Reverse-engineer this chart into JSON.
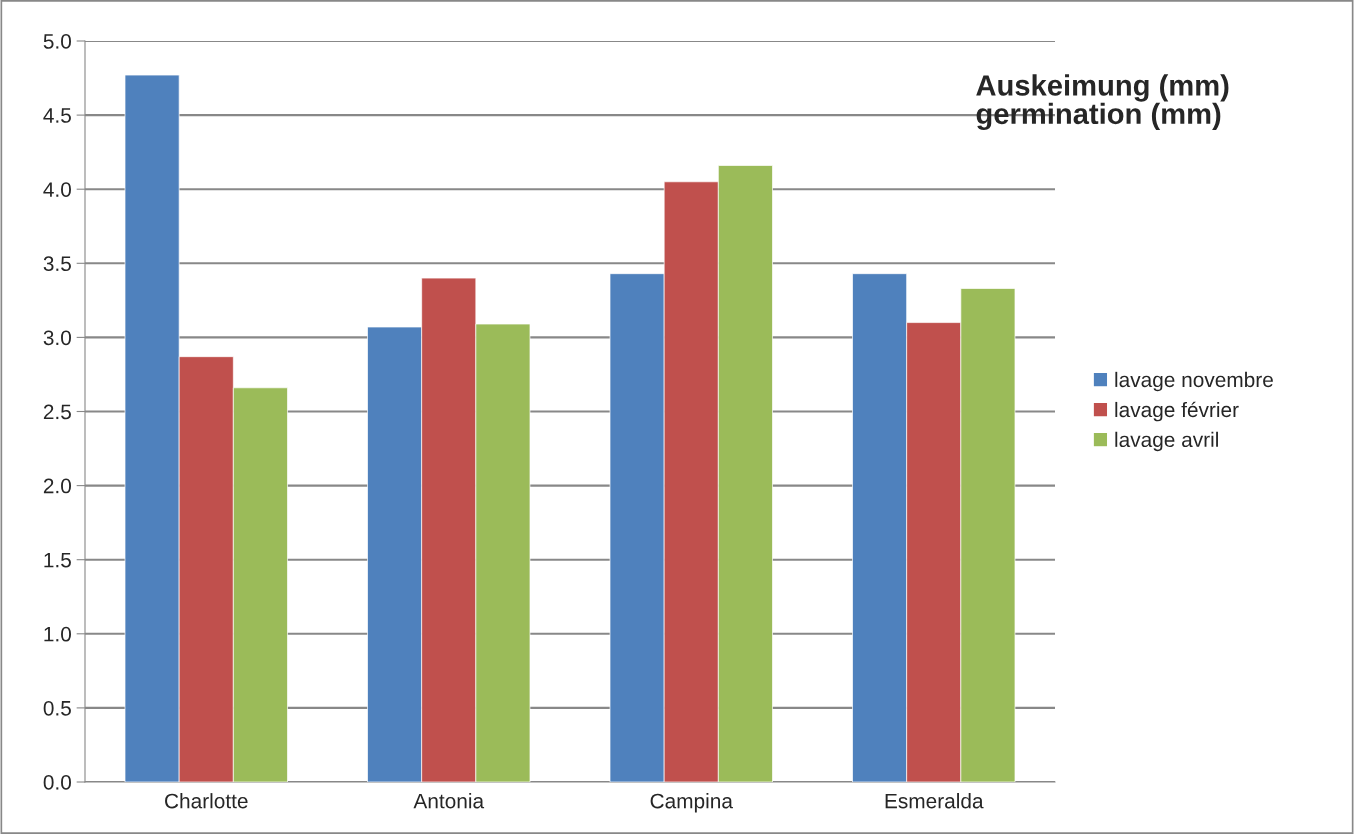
{
  "chart_data": {
    "type": "bar",
    "title": "Auskeimung (mm)\ngermination (mm)",
    "categories": [
      "Charlotte",
      "Antonia",
      "Campina",
      "Esmeralda"
    ],
    "series": [
      {
        "name": "lavage novembre",
        "color": "#4f81bd",
        "values": [
          4.77,
          3.07,
          3.43,
          3.43
        ]
      },
      {
        "name": "lavage février",
        "color": "#c0504d",
        "values": [
          2.87,
          3.4,
          4.05,
          3.1
        ]
      },
      {
        "name": "lavage avril",
        "color": "#9bbb59",
        "values": [
          2.66,
          3.09,
          4.16,
          3.33
        ]
      }
    ],
    "ylim": [
      0,
      5
    ],
    "yticks": [
      {
        "value": 0,
        "label": "0.0"
      },
      {
        "value": 0.5,
        "label": "0.5"
      },
      {
        "value": 1,
        "label": "1.0"
      },
      {
        "value": 1.5,
        "label": "1.5"
      },
      {
        "value": 2,
        "label": "2.0"
      },
      {
        "value": 2.5,
        "label": "2.5"
      },
      {
        "value": 3,
        "label": "3.0"
      },
      {
        "value": 3.5,
        "label": "3.5"
      },
      {
        "value": 4,
        "label": "4.0"
      },
      {
        "value": 4.5,
        "label": "4.5"
      },
      {
        "value": 5,
        "label": "5.0"
      }
    ],
    "grid": "y",
    "legend": "right"
  }
}
